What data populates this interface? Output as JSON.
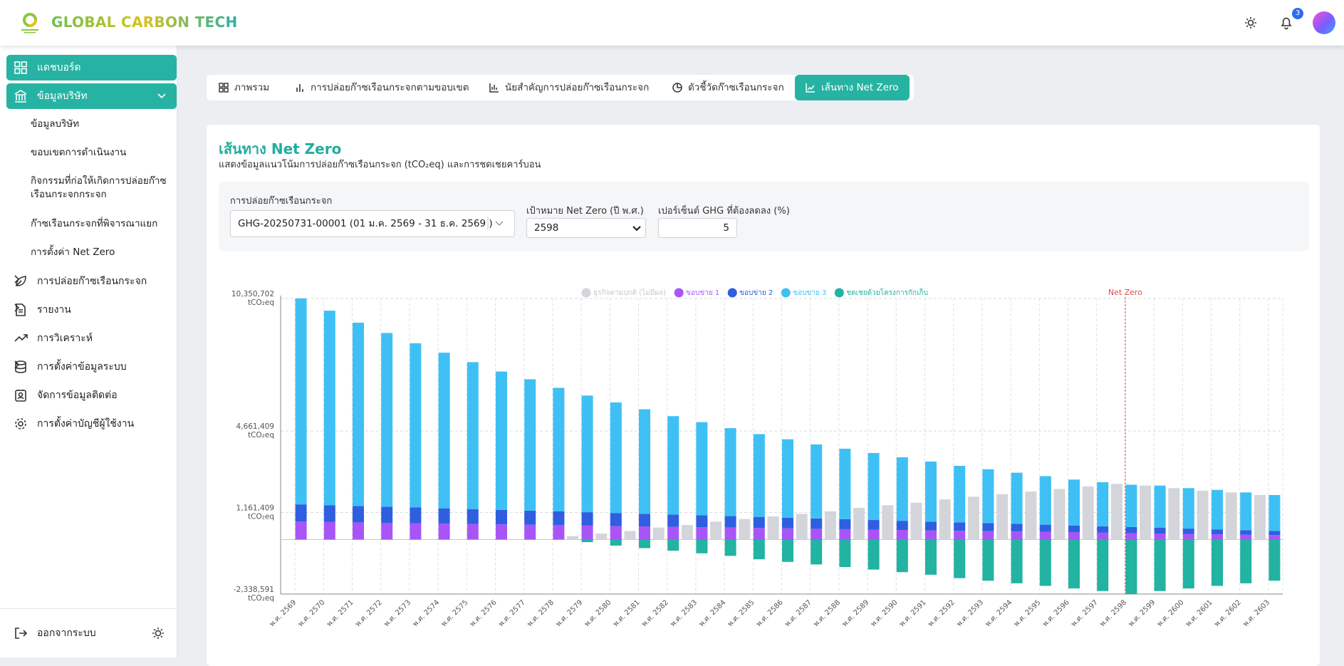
{
  "header": {
    "brand": "GLOBAL CARBON TECH",
    "notifications": 3
  },
  "sidebar": {
    "items": [
      {
        "label": "แดชบอร์ด"
      },
      {
        "label": "ข้อมูลบริษัท",
        "children": [
          "ข้อมูลบริษัท",
          "ขอบเขตการดำเนินงาน",
          "กิจกรรมที่ก่อให้เกิดการปล่อยก๊าซเรือนกระจกกระจก",
          "ก๊าซเรือนกระจกที่พิจารณาแยก",
          "การตั้งค่า Net Zero"
        ]
      },
      {
        "label": "การปล่อยก๊าซเรือนกระจก"
      },
      {
        "label": "รายงาน"
      },
      {
        "label": "การวิเคราะห์"
      },
      {
        "label": "การตั้งค่าข้อมูลระบบ"
      },
      {
        "label": "จัดการข้อมูลติดต่อ"
      },
      {
        "label": "การตั้งค่าบัญชีผู้ใช้งาน"
      }
    ],
    "logout": "ออกจากระบบ"
  },
  "tabs": [
    "ภาพรวม",
    "การปล่อยก๊าซเรือนกระจกตามขอบเขต",
    "นัยสำคัญการปล่อยก๊าซเรือนกระจก",
    "ตัวชี้วัดก๊าซเรือนกระจก",
    "เส้นทาง Net Zero"
  ],
  "card": {
    "title": "เส้นทาง Net Zero",
    "subtitle": "แสดงข้อมูลแนวโน้มการปล่อยก๊าซเรือนกระจก (tCO₂eq) และการชดเชยคาร์บอน"
  },
  "filters": {
    "emission_label": "การปล่อยก๊าซเรือนกระจก",
    "emission_value": "GHG-20250731-00001 (01 ม.ค. 2569 - 31 ธ.ค. 2569 )",
    "target_label": "เป้าหมาย Net Zero (ปี พ.ศ.)",
    "target_value": "2598",
    "percent_label": "เปอร์เซ็นต์ GHG ที่ต้องลดลง (%)",
    "percent_value": 5
  },
  "chart_data": {
    "type": "bar",
    "y_unit": "tCO₂eq",
    "categories": [
      "พ.ศ. 2569",
      "พ.ศ. 2570",
      "พ.ศ. 2571",
      "พ.ศ. 2572",
      "พ.ศ. 2573",
      "พ.ศ. 2574",
      "พ.ศ. 2575",
      "พ.ศ. 2576",
      "พ.ศ. 2577",
      "พ.ศ. 2578",
      "พ.ศ. 2579",
      "พ.ศ. 2580",
      "พ.ศ. 2581",
      "พ.ศ. 2582",
      "พ.ศ. 2583",
      "พ.ศ. 2584",
      "พ.ศ. 2585",
      "พ.ศ. 2586",
      "พ.ศ. 2587",
      "พ.ศ. 2588",
      "พ.ศ. 2589",
      "พ.ศ. 2590",
      "พ.ศ. 2591",
      "พ.ศ. 2592",
      "พ.ศ. 2593",
      "พ.ศ. 2594",
      "พ.ศ. 2595",
      "พ.ศ. 2596",
      "พ.ศ. 2597",
      "พ.ศ. 2598",
      "พ.ศ. 2599",
      "พ.ศ. 2600",
      "พ.ศ. 2601",
      "พ.ศ. 2602",
      "พ.ศ. 2603"
    ],
    "series": [
      {
        "name": "ธุรกิจตามปกติ (ไม่มีผล)",
        "color": "#d3d5da",
        "legend_text_color": "#c6c8cd",
        "stack": "bau",
        "values": [
          0,
          0,
          0,
          0,
          0,
          0,
          0,
          0,
          0,
          0,
          147200,
          257600,
          368000,
          515200,
          625600,
          772800,
          883200,
          993600,
          1104000,
          1214400,
          1361600,
          1472000,
          1582400,
          1729600,
          1840000,
          1950400,
          2060800,
          2171200,
          2281600,
          2392000,
          2318400,
          2208000,
          2097600,
          2024000,
          1913600
        ]
      },
      {
        "name": "ขอบข่าย 1",
        "color": "#a855f7",
        "legend_text_color": "#a855f7",
        "stack": "net",
        "values": [
          770000,
          753000,
          736000,
          719000,
          702000,
          685000,
          668000,
          651000,
          634000,
          617000,
          600000,
          583000,
          566000,
          549000,
          532000,
          515000,
          498000,
          481000,
          464000,
          447000,
          430000,
          413000,
          396000,
          379000,
          362000,
          345000,
          328000,
          311000,
          294000,
          277000,
          260000,
          243000,
          226000,
          209000,
          192000
        ]
      },
      {
        "name": "ขอบข่าย 2",
        "color": "#2f5fe0",
        "legend_text_color": "#2f5fe0",
        "stack": "net",
        "values": [
          740000,
          723500,
          707000,
          690500,
          674000,
          657500,
          641000,
          624500,
          608000,
          591500,
          575000,
          558500,
          542000,
          525500,
          509000,
          492500,
          476000,
          459500,
          443000,
          426500,
          410000,
          393500,
          377000,
          360500,
          344000,
          327500,
          311000,
          294500,
          278000,
          261500,
          245000,
          228500,
          212000,
          195500,
          179000
        ]
      },
      {
        "name": "ขอบข่าย 3",
        "color": "#3ec0f5",
        "legend_text_color": "#3ec0f5",
        "stack": "net",
        "values": [
          8840702,
          8349100,
          7867400,
          7459300,
          7051200,
          6679900,
          6308600,
          5937300,
          5639600,
          5305100,
          5007400,
          4746500,
          4485600,
          4224700,
          4000600,
          3776500,
          3552400,
          3365100,
          3177800,
          3027300,
          2876800,
          2726300,
          2575800,
          2425300,
          2311600,
          2197900,
          2084200,
          1970500,
          1893600,
          1816700,
          1813400,
          1736500,
          1696400,
          1619500,
          1542600
        ]
      },
      {
        "name": "ชดเชยด้วยโครงการกักเก็บ",
        "color": "#22b3a2",
        "legend_text_color": "#22b3a2",
        "stack": "net",
        "values": [
          0,
          0,
          0,
          0,
          0,
          0,
          0,
          0,
          0,
          0,
          -110400,
          -257600,
          -368000,
          -478400,
          -588800,
          -699200,
          -846400,
          -956800,
          -1067200,
          -1177600,
          -1288000,
          -1398400,
          -1508800,
          -1656000,
          -1766400,
          -1876800,
          -1987200,
          -2097600,
          -2208000,
          -2338591,
          -2208000,
          -2097600,
          -1987200,
          -1876800,
          -1766400
        ]
      }
    ],
    "ylim": [
      -2338591,
      10350702
    ],
    "yticks": [
      {
        "value": -2338591,
        "label": "-2,338,591"
      },
      {
        "value": 1161409,
        "label": "1,161,409"
      },
      {
        "value": 4661409,
        "label": "4,661,409"
      },
      {
        "value": 10350702,
        "label": "10,350,702"
      }
    ],
    "grid": true,
    "legend": "top",
    "marker": {
      "label": "Net Zero",
      "category": "พ.ศ. 2598",
      "color": "#e5484d"
    }
  }
}
